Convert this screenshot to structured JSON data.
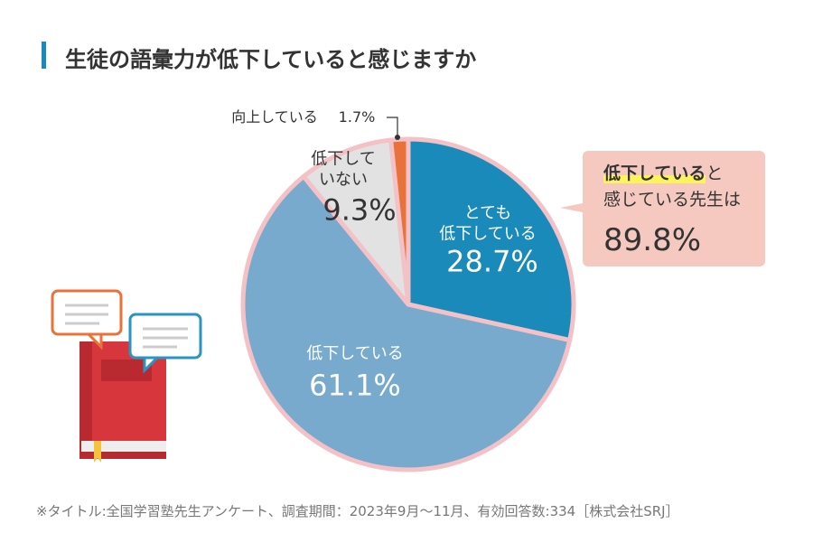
{
  "chart_data": {
    "type": "pie",
    "title": "生徒の語彙力が低下していると感じますか",
    "categories": [
      "とても\n低下している",
      "低下している",
      "低下して\nいない",
      "向上している"
    ],
    "values": [
      28.7,
      61.1,
      9.3,
      1.7
    ],
    "value_labels": [
      "28.7%",
      "61.1%",
      "9.3%",
      "1.7%"
    ],
    "colors": [
      "#1a8abb",
      "#77aacd",
      "#e2e2e2",
      "#e8733a"
    ],
    "callout": {
      "highlight": "低下している",
      "text": "と\n感じている先生は",
      "value_label": "89.8%"
    },
    "footnote": "※タイトル:全国学習塾先生アンケート、調査期間：2023年9月～11月、有効回答数:334［株式会社SRJ］"
  }
}
